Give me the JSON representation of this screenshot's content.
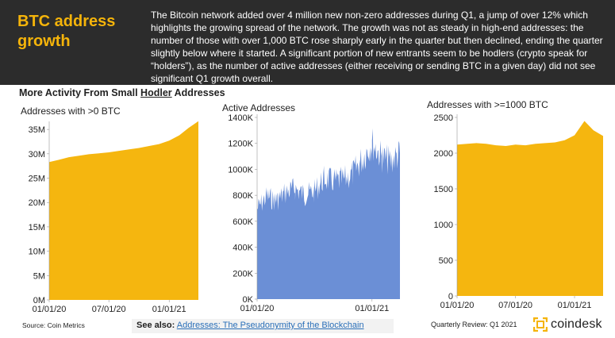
{
  "header": {
    "title": "BTC address growth",
    "body": "The Bitcoin network added over 4 million new non-zero addresses during Q1, a jump of over 12% which highlights the growing spread of the network. The growth was not as steady in high-end addresses: the number of those with over 1,000 BTC rose sharply early in the quarter but then declined, ending the quarter slightly below where it started. A significant portion of new entrants seem to be hodlers (crypto speak for “holders”), as the number of active addresses (either receiving or sending BTC in a given day) did not see significant Q1 growth overall."
  },
  "subtitle": {
    "prefix": "More Activity From Small ",
    "underlined": "Hodler",
    "suffix": " Addresses"
  },
  "footer": {
    "source": "Source: Coin Metrics",
    "see_also_label": "See also:",
    "see_also_link": "Addresses: The Pseudonymity of the Blockchain",
    "quarterly": "Quarterly Review: Q1 2021",
    "brand": "coindesk"
  },
  "colors": {
    "header_bg": "#2c2c2c",
    "accent": "#f5b40a",
    "area_yellow": "#f5b60f",
    "area_blue": "#6b8fd6"
  },
  "chart_data": [
    {
      "type": "area",
      "title": "Addresses with >0 BTC",
      "x_ticks": [
        "01/01/20",
        "07/01/20",
        "01/01/21"
      ],
      "y_ticks": [
        "0M",
        "5M",
        "10M",
        "15M",
        "20M",
        "25M",
        "30M",
        "35M"
      ],
      "ylim": [
        0,
        36
      ],
      "xlim": [
        "2020-01-01",
        "2021-03-31"
      ],
      "x": [
        "2020-01-01",
        "2020-02-01",
        "2020-03-01",
        "2020-04-01",
        "2020-05-01",
        "2020-06-01",
        "2020-07-01",
        "2020-08-01",
        "2020-09-01",
        "2020-10-01",
        "2020-11-01",
        "2020-12-01",
        "2021-01-01",
        "2021-02-01",
        "2021-03-01",
        "2021-03-31"
      ],
      "values": [
        28.3,
        28.8,
        29.3,
        29.6,
        29.9,
        30.1,
        30.3,
        30.6,
        30.9,
        31.2,
        31.6,
        32.0,
        32.7,
        33.8,
        35.3,
        36.7
      ],
      "color": "#f5b60f"
    },
    {
      "type": "area",
      "title": "Active Addresses",
      "x_ticks": [
        "01/01/20",
        "01/01/21"
      ],
      "y_ticks": [
        "0K",
        "200K",
        "400K",
        "600K",
        "800K",
        "1000K",
        "1200K",
        "1400K"
      ],
      "ylim": [
        0,
        1400
      ],
      "xlim": [
        "2020-01-01",
        "2021-03-31"
      ],
      "x": [
        "2020-01-01",
        "2020-02-01",
        "2020-03-01",
        "2020-04-01",
        "2020-05-01",
        "2020-06-01",
        "2020-07-01",
        "2020-08-01",
        "2020-09-01",
        "2020-10-01",
        "2020-11-01",
        "2020-12-01",
        "2021-01-01",
        "2021-02-01",
        "2021-03-01",
        "2021-03-31"
      ],
      "values": [
        720,
        820,
        780,
        850,
        880,
        830,
        860,
        960,
        940,
        950,
        1000,
        1120,
        1250,
        1130,
        1100,
        1160
      ],
      "color": "#6b8fd6"
    },
    {
      "type": "area",
      "title": "Addresses with >=1000 BTC",
      "x_ticks": [
        "01/01/20",
        "07/01/20",
        "01/01/21"
      ],
      "y_ticks": [
        "0",
        "500",
        "1000",
        "1500",
        "2000",
        "2500"
      ],
      "ylim": [
        0,
        2500
      ],
      "xlim": [
        "2020-01-01",
        "2021-03-31"
      ],
      "x": [
        "2020-01-01",
        "2020-02-01",
        "2020-03-01",
        "2020-04-01",
        "2020-05-01",
        "2020-06-01",
        "2020-07-01",
        "2020-08-01",
        "2020-09-01",
        "2020-10-01",
        "2020-11-01",
        "2020-12-01",
        "2021-01-01",
        "2021-02-01",
        "2021-03-01",
        "2021-03-31"
      ],
      "values": [
        2120,
        2130,
        2140,
        2130,
        2110,
        2100,
        2120,
        2110,
        2130,
        2140,
        2150,
        2180,
        2250,
        2450,
        2320,
        2240
      ],
      "color": "#f5b60f"
    }
  ]
}
